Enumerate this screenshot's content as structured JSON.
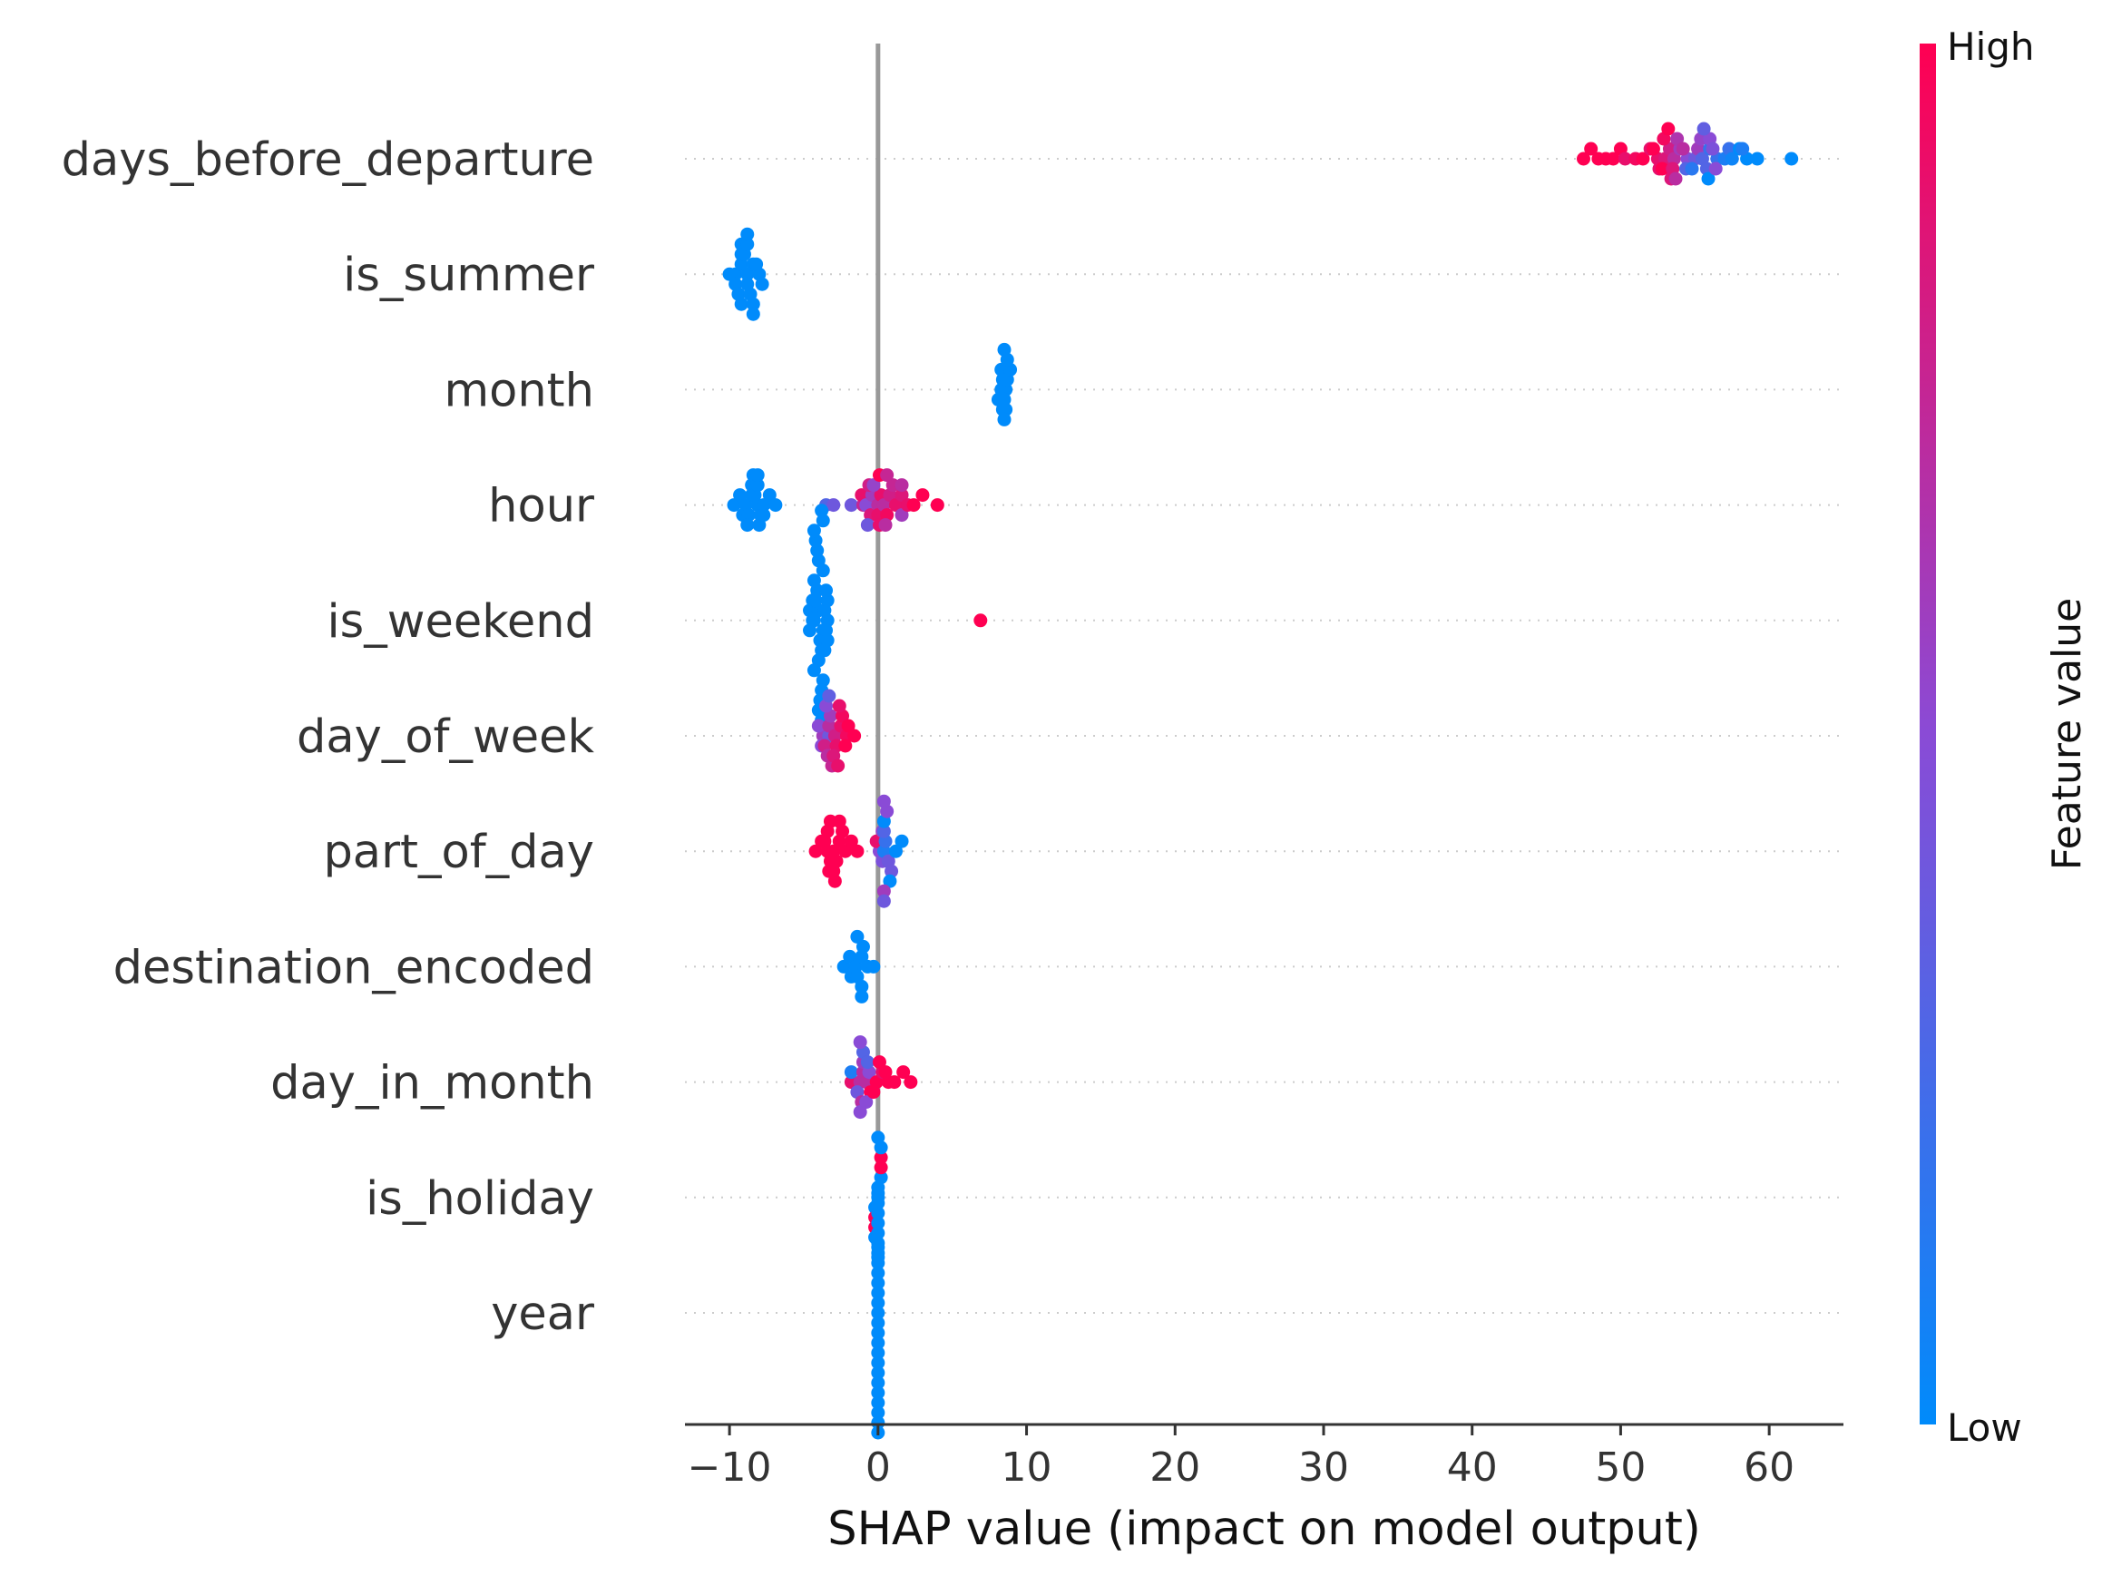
{
  "chart_data": {
    "type": "scatter",
    "subtype": "shap-beeswarm",
    "xlabel": "SHAP value (impact on model output)",
    "xlim": [
      -13,
      65
    ],
    "xticks": [
      -10,
      0,
      10,
      20,
      30,
      40,
      50,
      60
    ],
    "xtick_labels": [
      "−10",
      "0",
      "10",
      "20",
      "30",
      "40",
      "50",
      "60"
    ],
    "colorbar": {
      "title": "Feature value",
      "high_label": "High",
      "low_label": "Low",
      "low_color": "#008bfb",
      "mid_color": "#8a4bd6",
      "high_color": "#ff0052"
    },
    "colors": {
      "zero_line": "#999999",
      "axis": "#333333",
      "row_grid": "#cccccc"
    },
    "features": [
      {
        "name": "days_before_departure",
        "points": [
          [
            47.5,
            1
          ],
          [
            48,
            1
          ],
          [
            48.5,
            1
          ],
          [
            49,
            1
          ],
          [
            49.5,
            1
          ],
          [
            50,
            1
          ],
          [
            50.3,
            0.9
          ],
          [
            51,
            0.95
          ],
          [
            51.5,
            1
          ],
          [
            52,
            0.9
          ],
          [
            52.5,
            0.9
          ],
          [
            53,
            0.85
          ],
          [
            53.3,
            0.8
          ],
          [
            53.6,
            0.7
          ],
          [
            54,
            0.6
          ],
          [
            54.5,
            0.5
          ],
          [
            55,
            0.4
          ],
          [
            55.5,
            0.3
          ],
          [
            56,
            0.2
          ],
          [
            56.5,
            0.2
          ],
          [
            57,
            0.1
          ],
          [
            57.5,
            0.05
          ],
          [
            58,
            0
          ],
          [
            58.5,
            0
          ],
          [
            59.2,
            0
          ],
          [
            61.5,
            0
          ],
          [
            52.8,
            1
          ],
          [
            53.5,
            0.85
          ],
          [
            54.2,
            0.7
          ],
          [
            55.2,
            0.6
          ],
          [
            56.2,
            0.45
          ],
          [
            52.2,
            1
          ],
          [
            53.8,
            0.65
          ],
          [
            55.8,
            0.3
          ],
          [
            56,
            0.5
          ],
          [
            52.9,
            0.95
          ],
          [
            53.4,
            0.85
          ],
          [
            54.8,
            0.15
          ],
          [
            55.9,
            0
          ],
          [
            56.4,
            0.5
          ],
          [
            58.2,
            0.1
          ],
          [
            53.7,
            0.7
          ],
          [
            52.6,
            0.9
          ],
          [
            55.4,
            0.55
          ],
          [
            54.4,
            0.3
          ],
          [
            53.2,
            1
          ],
          [
            55.6,
            0.35
          ],
          [
            57.3,
            0.2
          ]
        ]
      },
      {
        "name": "is_summer",
        "points": [
          [
            -10,
            0
          ],
          [
            -9.6,
            0
          ],
          [
            -9.2,
            0
          ],
          [
            -8.8,
            0
          ],
          [
            -8.4,
            0
          ],
          [
            -8,
            0
          ],
          [
            -9.6,
            0
          ],
          [
            -9.2,
            0
          ],
          [
            -8.8,
            0
          ],
          [
            -9.4,
            0
          ],
          [
            -9,
            0
          ],
          [
            -8.6,
            0
          ],
          [
            -8.2,
            0
          ],
          [
            -7.8,
            0
          ],
          [
            -9.2,
            0
          ],
          [
            -8.8,
            0
          ],
          [
            -8.4,
            0
          ],
          [
            -9.2,
            0
          ],
          [
            -8.8,
            0
          ],
          [
            -8.4,
            0
          ]
        ]
      },
      {
        "name": "month",
        "points": [
          [
            8.3,
            0
          ],
          [
            8.6,
            0
          ],
          [
            8.4,
            0
          ],
          [
            8.7,
            0
          ],
          [
            8.1,
            0
          ],
          [
            8.5,
            0
          ],
          [
            8.9,
            0
          ],
          [
            8.3,
            0
          ],
          [
            8.6,
            0
          ],
          [
            8.4,
            0
          ],
          [
            8.7,
            0
          ],
          [
            8.5,
            0
          ],
          [
            8.5,
            0
          ]
        ]
      },
      {
        "name": "hour",
        "points": [
          [
            -9.7,
            0
          ],
          [
            -9.3,
            0
          ],
          [
            -8.9,
            0
          ],
          [
            -8.5,
            0
          ],
          [
            -8.1,
            0
          ],
          [
            -7.7,
            0
          ],
          [
            -7.3,
            0
          ],
          [
            -6.9,
            0
          ],
          [
            -9.1,
            0
          ],
          [
            -8.7,
            0
          ],
          [
            -8.3,
            0
          ],
          [
            -7.9,
            0
          ],
          [
            -8.5,
            0
          ],
          [
            -8.1,
            0
          ],
          [
            -7.7,
            0
          ],
          [
            -8.8,
            0
          ],
          [
            -8.4,
            0
          ],
          [
            -8,
            0
          ],
          [
            -8.1,
            0
          ],
          [
            -3,
            0.4
          ],
          [
            -3.5,
            0.3
          ],
          [
            -1.8,
            0.4
          ],
          [
            -0.8,
            0.5
          ],
          [
            -0.4,
            0.6
          ],
          [
            0,
            0.7
          ],
          [
            0.4,
            0.7
          ],
          [
            0.8,
            0.8
          ],
          [
            1.2,
            0.9
          ],
          [
            1.6,
            0.85
          ],
          [
            2,
            0.9
          ],
          [
            2.4,
            1
          ],
          [
            3,
            1
          ],
          [
            4,
            1
          ],
          [
            -1,
            0.75
          ],
          [
            -0.5,
            0.85
          ],
          [
            0.2,
            0.9
          ],
          [
            0.6,
            0.95
          ],
          [
            1,
            0.75
          ],
          [
            1.6,
            0.6
          ],
          [
            -1.1,
            0.9
          ],
          [
            -0.6,
            0.8
          ],
          [
            0,
            0.9
          ],
          [
            0.5,
            0.7
          ],
          [
            -0.7,
            0.4
          ],
          [
            -0.3,
            0.55
          ],
          [
            0.1,
            0.9
          ],
          [
            0.6,
            0.75
          ],
          [
            0.1,
            1
          ],
          [
            1.6,
            0.7
          ]
        ]
      },
      {
        "name": "is_weekend",
        "points": [
          [
            -4.3,
            0
          ],
          [
            -4,
            0
          ],
          [
            -3.7,
            0
          ],
          [
            -3.4,
            0
          ],
          [
            -4.2,
            0
          ],
          [
            -3.9,
            0
          ],
          [
            -3.6,
            0
          ],
          [
            -4.4,
            0
          ],
          [
            -4.1,
            0
          ],
          [
            -3.8,
            0
          ],
          [
            -3.5,
            0
          ],
          [
            -4.6,
            0
          ],
          [
            -4.3,
            0
          ],
          [
            -4,
            0
          ],
          [
            -3.7,
            0
          ],
          [
            -3.4,
            0
          ],
          [
            -4.6,
            0
          ],
          [
            -4.3,
            0
          ],
          [
            -4,
            0
          ],
          [
            -3.7,
            0
          ],
          [
            -3.4,
            0
          ],
          [
            -4.4,
            0
          ],
          [
            -4.1,
            0
          ],
          [
            -3.8,
            0
          ],
          [
            -3.5,
            0
          ],
          [
            -4.2,
            0
          ],
          [
            -3.9,
            0
          ],
          [
            -3.6,
            0
          ],
          [
            -4.3,
            0
          ],
          [
            -4,
            0
          ],
          [
            -3.7,
            0
          ],
          [
            -3.8,
            0
          ],
          [
            -3.8,
            0
          ],
          [
            6.9,
            1
          ]
        ]
      },
      {
        "name": "day_of_week",
        "points": [
          [
            -3.3,
            0.4
          ],
          [
            -3.7,
            0.6
          ],
          [
            -3.3,
            0.7
          ],
          [
            -2.9,
            0.8
          ],
          [
            -2.5,
            0.9
          ],
          [
            -2.1,
            0.95
          ],
          [
            -4,
            0.5
          ],
          [
            -3.6,
            0.8
          ],
          [
            -3.2,
            0.6
          ],
          [
            -2.8,
            0.9
          ],
          [
            -2.4,
            0.95
          ],
          [
            -2,
            1
          ],
          [
            -1.6,
            1
          ],
          [
            -3.8,
            0.5
          ],
          [
            -3.4,
            0.7
          ],
          [
            -3,
            0.85
          ],
          [
            -2.6,
            0.9
          ],
          [
            -2.2,
            1
          ],
          [
            -3.5,
            0.5
          ],
          [
            -3.1,
            0.75
          ],
          [
            -2.7,
            0.9
          ],
          [
            -3.3,
            0.35
          ]
        ]
      },
      {
        "name": "part_of_day",
        "points": [
          [
            -4.2,
            1
          ],
          [
            -3.8,
            1
          ],
          [
            -3.4,
            1
          ],
          [
            -3,
            1
          ],
          [
            -2.6,
            1
          ],
          [
            -2.2,
            1
          ],
          [
            -1.8,
            1
          ],
          [
            -1.4,
            1
          ],
          [
            -3.6,
            1
          ],
          [
            -3.2,
            1
          ],
          [
            -2.8,
            1
          ],
          [
            -2.4,
            1
          ],
          [
            -3.4,
            1
          ],
          [
            -3,
            1
          ],
          [
            -2.6,
            1
          ],
          [
            -3.3,
            1
          ],
          [
            -2.9,
            1
          ],
          [
            -3.2,
            1
          ],
          [
            0.4,
            0.1
          ],
          [
            0.5,
            0.2
          ],
          [
            0.7,
            0.4
          ],
          [
            0.1,
            0.5
          ],
          [
            0.4,
            0.3
          ],
          [
            0.9,
            0.4
          ],
          [
            -0.1,
            0.9
          ],
          [
            0.4,
            0
          ],
          [
            0.8,
            0
          ],
          [
            1.2,
            0
          ],
          [
            1.6,
            0
          ],
          [
            0.3,
            0.45
          ],
          [
            0.6,
            0.5
          ],
          [
            0.4,
            0.6
          ],
          [
            0.3,
            0.55
          ],
          [
            0.4,
            0.5
          ],
          [
            0.4,
            0.4
          ]
        ]
      },
      {
        "name": "destination_encoded",
        "points": [
          [
            -2.3,
            0
          ],
          [
            -1.9,
            0
          ],
          [
            -1.5,
            0
          ],
          [
            -1.1,
            0
          ],
          [
            -0.7,
            0
          ],
          [
            -0.3,
            0
          ],
          [
            -1.8,
            0
          ],
          [
            -1.4,
            0
          ],
          [
            -1,
            0
          ],
          [
            -1.1,
            0
          ],
          [
            -1.4,
            0
          ],
          [
            -1.1,
            0
          ]
        ]
      },
      {
        "name": "day_in_month",
        "points": [
          [
            -1.2,
            0.7
          ],
          [
            -0.8,
            0.7
          ],
          [
            -1,
            0.7
          ],
          [
            -0.6,
            0.5
          ],
          [
            -1.4,
            0.4
          ],
          [
            -1,
            0.6
          ],
          [
            -0.5,
            1
          ],
          [
            -0.1,
            1
          ],
          [
            0.3,
            0.9
          ],
          [
            0.7,
            1
          ],
          [
            1.1,
            1
          ],
          [
            -1.8,
            0.9
          ],
          [
            -1.1,
            0.7
          ],
          [
            -0.7,
            0.3
          ],
          [
            -0.3,
            1
          ],
          [
            -1,
            0.3
          ],
          [
            0.1,
            1
          ],
          [
            0.5,
            1
          ],
          [
            2.2,
            1
          ],
          [
            1.7,
            1
          ],
          [
            -1.8,
            0.1
          ],
          [
            -0.8,
            0.5
          ],
          [
            -1.2,
            0.5
          ],
          [
            -1.2,
            0.5
          ]
        ]
      },
      {
        "name": "is_holiday",
        "points": [
          [
            0,
            0
          ],
          [
            0,
            0
          ],
          [
            -0.2,
            0
          ],
          [
            0.2,
            0
          ],
          [
            -0.2,
            1
          ],
          [
            0.2,
            1
          ],
          [
            -0.2,
            1
          ],
          [
            0.2,
            1
          ],
          [
            -0.2,
            0
          ],
          [
            0.2,
            0
          ],
          [
            0,
            0
          ],
          [
            0,
            0
          ],
          [
            0,
            0
          ]
        ]
      },
      {
        "name": "year",
        "points": [
          [
            0,
            0
          ],
          [
            0,
            0
          ],
          [
            0,
            0
          ],
          [
            0,
            0
          ],
          [
            0,
            0
          ],
          [
            0,
            0
          ],
          [
            0,
            0
          ],
          [
            0,
            0
          ],
          [
            0,
            0
          ],
          [
            0,
            0
          ],
          [
            0,
            0
          ],
          [
            0,
            0
          ],
          [
            0,
            0
          ],
          [
            0,
            0
          ],
          [
            0,
            0
          ],
          [
            0,
            0
          ],
          [
            0,
            0
          ],
          [
            0,
            0
          ],
          [
            0,
            0
          ],
          [
            0,
            0
          ],
          [
            0,
            0
          ],
          [
            0,
            0
          ],
          [
            0,
            0
          ],
          [
            0,
            0
          ],
          [
            0,
            0
          ]
        ]
      }
    ]
  }
}
